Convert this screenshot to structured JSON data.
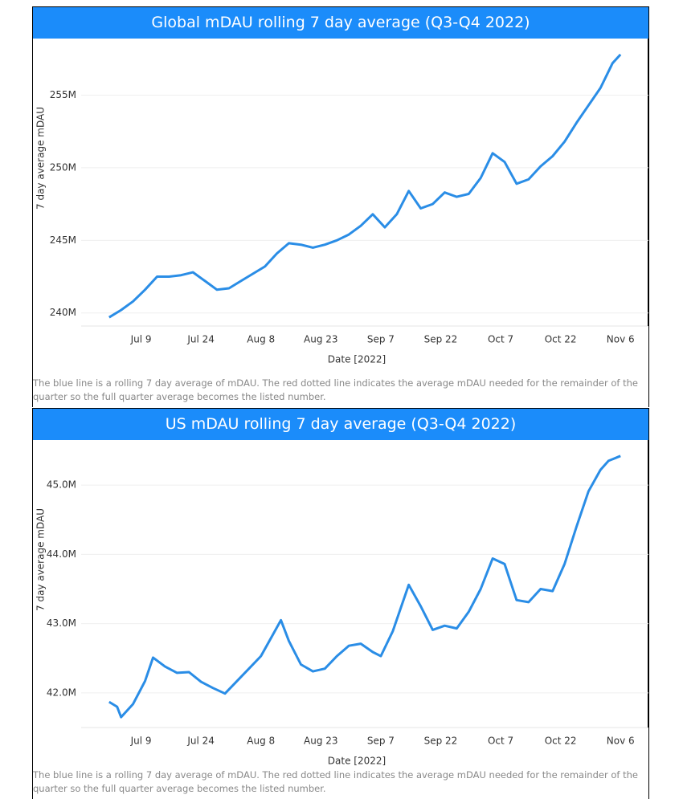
{
  "chart_data": [
    {
      "type": "line",
      "title": "Global mDAU rolling 7 day average (Q3-Q4 2022)",
      "y_label": "7 day average mDAU",
      "x_label": "Date [2022]",
      "note": "The blue line is a rolling 7 day average of mDAU. The red dotted line indicates the average mDAU needed for the remainder of the quarter so the full quarter average becomes the listed number.",
      "xlim": [
        "2022-06-24",
        "2022-11-13"
      ],
      "xticks": [
        {
          "value": "2022-07-09",
          "label": "Jul 9"
        },
        {
          "value": "2022-07-24",
          "label": "Jul 24"
        },
        {
          "value": "2022-08-08",
          "label": "Aug 8"
        },
        {
          "value": "2022-08-23",
          "label": "Aug 23"
        },
        {
          "value": "2022-09-07",
          "label": "Sep 7"
        },
        {
          "value": "2022-09-22",
          "label": "Sep 22"
        },
        {
          "value": "2022-10-07",
          "label": "Oct 7"
        },
        {
          "value": "2022-10-22",
          "label": "Oct 22"
        },
        {
          "value": "2022-11-06",
          "label": "Nov 6"
        }
      ],
      "ylim": [
        239.1,
        258.9
      ],
      "yticks": [
        {
          "value": 240,
          "label": "240M"
        },
        {
          "value": 245,
          "label": "245M"
        },
        {
          "value": 250,
          "label": "250M"
        },
        {
          "value": 255,
          "label": "255M"
        }
      ],
      "grid": true,
      "x": [
        "2022-07-01",
        "2022-07-04",
        "2022-07-07",
        "2022-07-10",
        "2022-07-13",
        "2022-07-16",
        "2022-07-19",
        "2022-07-22",
        "2022-07-25",
        "2022-07-28",
        "2022-07-31",
        "2022-08-03",
        "2022-08-06",
        "2022-08-09",
        "2022-08-12",
        "2022-08-15",
        "2022-08-18",
        "2022-08-21",
        "2022-08-24",
        "2022-08-27",
        "2022-08-30",
        "2022-09-02",
        "2022-09-05",
        "2022-09-08",
        "2022-09-11",
        "2022-09-14",
        "2022-09-17",
        "2022-09-20",
        "2022-09-23",
        "2022-09-26",
        "2022-09-29",
        "2022-10-02",
        "2022-10-05",
        "2022-10-08",
        "2022-10-11",
        "2022-10-14",
        "2022-10-17",
        "2022-10-20",
        "2022-10-23",
        "2022-10-26",
        "2022-10-29",
        "2022-11-01",
        "2022-11-04",
        "2022-11-06"
      ],
      "series": [
        {
          "name": "mDAU",
          "color": "#2a8de6",
          "values": [
            239.7,
            240.2,
            240.8,
            241.6,
            242.5,
            242.5,
            242.6,
            242.8,
            242.2,
            241.6,
            241.7,
            242.2,
            242.7,
            243.2,
            244.1,
            244.8,
            244.7,
            244.5,
            244.7,
            245.0,
            245.4,
            246.0,
            246.8,
            245.9,
            246.8,
            248.4,
            247.2,
            247.5,
            248.3,
            248.0,
            248.2,
            249.3,
            251.0,
            250.4,
            248.9,
            249.2,
            250.1,
            250.8,
            251.8,
            253.1,
            254.3,
            255.5,
            257.2,
            257.8
          ]
        }
      ]
    },
    {
      "type": "line",
      "title": "US mDAU rolling 7 day average (Q3-Q4 2022)",
      "y_label": "7 day average mDAU",
      "x_label": "Date [2022]",
      "note": "The blue line is a rolling 7 day average of mDAU. The red dotted line indicates the average mDAU needed for the remainder of the quarter so the full quarter average becomes the listed number.",
      "xlim": [
        "2022-06-24",
        "2022-11-13"
      ],
      "xticks": [
        {
          "value": "2022-07-09",
          "label": "Jul 9"
        },
        {
          "value": "2022-07-24",
          "label": "Jul 24"
        },
        {
          "value": "2022-08-08",
          "label": "Aug 8"
        },
        {
          "value": "2022-08-23",
          "label": "Aug 23"
        },
        {
          "value": "2022-09-07",
          "label": "Sep 7"
        },
        {
          "value": "2022-09-22",
          "label": "Sep 22"
        },
        {
          "value": "2022-10-07",
          "label": "Oct 7"
        },
        {
          "value": "2022-10-22",
          "label": "Oct 22"
        },
        {
          "value": "2022-11-06",
          "label": "Nov 6"
        }
      ],
      "ylim": [
        41.5,
        45.65
      ],
      "yticks": [
        {
          "value": 42,
          "label": "42.0M"
        },
        {
          "value": 43,
          "label": "43.0M"
        },
        {
          "value": 44,
          "label": "44.0M"
        },
        {
          "value": 45,
          "label": "45.0M"
        }
      ],
      "grid": true,
      "x": [
        "2022-07-01",
        "2022-07-03",
        "2022-07-04",
        "2022-07-07",
        "2022-07-10",
        "2022-07-12",
        "2022-07-15",
        "2022-07-18",
        "2022-07-21",
        "2022-07-24",
        "2022-07-27",
        "2022-07-30",
        "2022-08-02",
        "2022-08-05",
        "2022-08-08",
        "2022-08-11",
        "2022-08-13",
        "2022-08-15",
        "2022-08-18",
        "2022-08-21",
        "2022-08-24",
        "2022-08-27",
        "2022-08-30",
        "2022-09-02",
        "2022-09-05",
        "2022-09-07",
        "2022-09-10",
        "2022-09-14",
        "2022-09-17",
        "2022-09-20",
        "2022-09-23",
        "2022-09-26",
        "2022-09-29",
        "2022-10-02",
        "2022-10-05",
        "2022-10-08",
        "2022-10-11",
        "2022-10-14",
        "2022-10-17",
        "2022-10-20",
        "2022-10-23",
        "2022-10-26",
        "2022-10-29",
        "2022-11-01",
        "2022-11-03",
        "2022-11-06"
      ],
      "series": [
        {
          "name": "mDAU",
          "color": "#2a8de6",
          "values": [
            41.87,
            41.8,
            41.65,
            41.84,
            42.17,
            42.51,
            42.38,
            42.29,
            42.3,
            42.16,
            42.07,
            41.99,
            42.17,
            42.35,
            42.53,
            42.84,
            43.05,
            42.75,
            42.41,
            42.31,
            42.35,
            42.53,
            42.68,
            42.71,
            42.59,
            42.53,
            42.89,
            43.56,
            43.25,
            42.91,
            42.97,
            42.93,
            43.17,
            43.5,
            43.94,
            43.86,
            43.34,
            43.31,
            43.5,
            43.47,
            43.86,
            44.4,
            44.91,
            45.22,
            45.35,
            45.42
          ]
        }
      ]
    }
  ]
}
